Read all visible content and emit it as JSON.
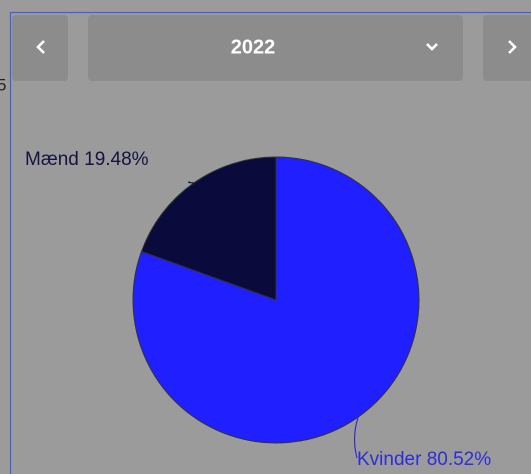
{
  "chart_data": {
    "type": "pie",
    "year": "2022",
    "side_label": "5",
    "categories": [
      "Kvinder",
      "Mænd"
    ],
    "values": [
      80.52,
      19.48
    ],
    "value_labels": [
      "Kvinder 80.52%",
      "Mænd 19.48%"
    ],
    "colors": [
      "#1f1fff",
      "#0a0a3d"
    ],
    "label_colors": [
      "#2e2ed6",
      "#14143f"
    ]
  }
}
